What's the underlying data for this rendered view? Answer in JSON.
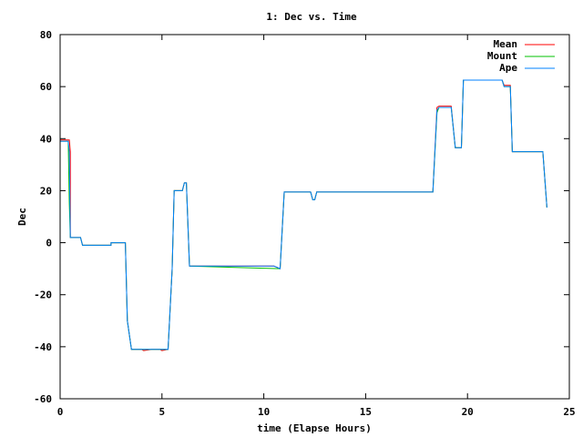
{
  "chart_data": {
    "type": "line",
    "title": "1: Dec vs. Time",
    "xlabel": "time (Elapse Hours)",
    "ylabel": "Dec",
    "xlim": [
      0,
      25
    ],
    "ylim": [
      -60,
      80
    ],
    "xticks": [
      0,
      5,
      10,
      15,
      20,
      25
    ],
    "yticks": [
      -60,
      -40,
      -20,
      0,
      20,
      40,
      60,
      80
    ],
    "grid": false,
    "legend_position": "top-right",
    "series": [
      {
        "name": "Mean",
        "color": "#ff0000",
        "x": [
          0,
          0.45,
          0.5,
          0.5,
          1.0,
          1.1,
          2.5,
          2.5,
          3.2,
          3.3,
          3.5,
          4.0,
          4.1,
          4.5,
          4.9,
          5.0,
          5.3,
          5.5,
          5.6,
          6.0,
          6.1,
          6.2,
          6.35,
          9.5,
          10.5,
          10.8,
          11.0,
          12.3,
          12.4,
          12.5,
          12.6,
          17.5,
          18.3,
          18.5,
          18.6,
          19.2,
          19.4,
          19.7,
          19.8,
          21.7,
          21.8,
          22.1,
          22.2,
          23.7,
          23.9
        ],
        "y": [
          39.5,
          39.5,
          35,
          2,
          2,
          -1,
          -1,
          0,
          0,
          -30,
          -41,
          -41,
          -41.5,
          -41,
          -41,
          -41.5,
          -41,
          -10,
          20,
          20,
          23,
          23,
          -9,
          -9,
          -9,
          -10,
          19.5,
          19.5,
          16.5,
          16.5,
          19.5,
          19.5,
          19.5,
          52,
          52.5,
          52.5,
          36.5,
          36.5,
          62.5,
          62.5,
          60.5,
          60.5,
          35,
          35,
          13.5
        ]
      },
      {
        "name": "Mount",
        "color": "#00c000",
        "x": [
          0,
          0.4,
          0.45,
          0.5,
          1.0,
          1.1,
          2.5,
          2.5,
          3.2,
          3.3,
          3.5,
          5.3,
          5.5,
          5.6,
          6.0,
          6.1,
          6.2,
          6.35,
          10.8,
          11.0,
          12.3,
          12.4,
          12.5,
          12.6,
          18.3,
          18.5,
          18.6,
          19.2,
          19.4,
          19.7,
          19.8,
          21.7,
          21.8,
          22.1,
          22.2,
          23.7,
          23.9
        ],
        "y": [
          39,
          39,
          15,
          2,
          2,
          -1,
          -1,
          0,
          0,
          -30,
          -41,
          -41,
          -10,
          20,
          20,
          23,
          23,
          -9,
          -10,
          19.5,
          19.5,
          16.5,
          16.5,
          19.5,
          19.5,
          50,
          52,
          52,
          36.5,
          36.5,
          62.5,
          62.5,
          60,
          60,
          35,
          35,
          13.5
        ]
      },
      {
        "name": "Ape",
        "color": "#0080ff",
        "x": [
          0,
          0.4,
          0.45,
          0.5,
          1.0,
          1.1,
          2.5,
          2.5,
          3.2,
          3.3,
          3.5,
          4.0,
          4.1,
          4.5,
          4.9,
          5.0,
          5.3,
          5.5,
          5.6,
          6.0,
          6.1,
          6.2,
          6.35,
          9.5,
          10.5,
          10.8,
          11.0,
          12.3,
          12.4,
          12.5,
          12.6,
          18.3,
          18.5,
          18.6,
          19.2,
          19.4,
          19.7,
          19.8,
          21.7,
          21.8,
          22.1,
          22.2,
          23.7,
          23.9
        ],
        "y": [
          39,
          39,
          35,
          2,
          2,
          -1,
          -1,
          0,
          0,
          -30,
          -41,
          -41,
          -41,
          -41,
          -41,
          -41,
          -41,
          -10,
          20,
          20,
          23,
          23,
          -9,
          -9,
          -9,
          -10,
          19.5,
          19.5,
          16.5,
          16.5,
          19.5,
          19.5,
          51,
          52,
          52,
          36.5,
          36.5,
          62.5,
          62.5,
          60,
          60,
          35,
          35,
          13.5
        ]
      }
    ]
  }
}
